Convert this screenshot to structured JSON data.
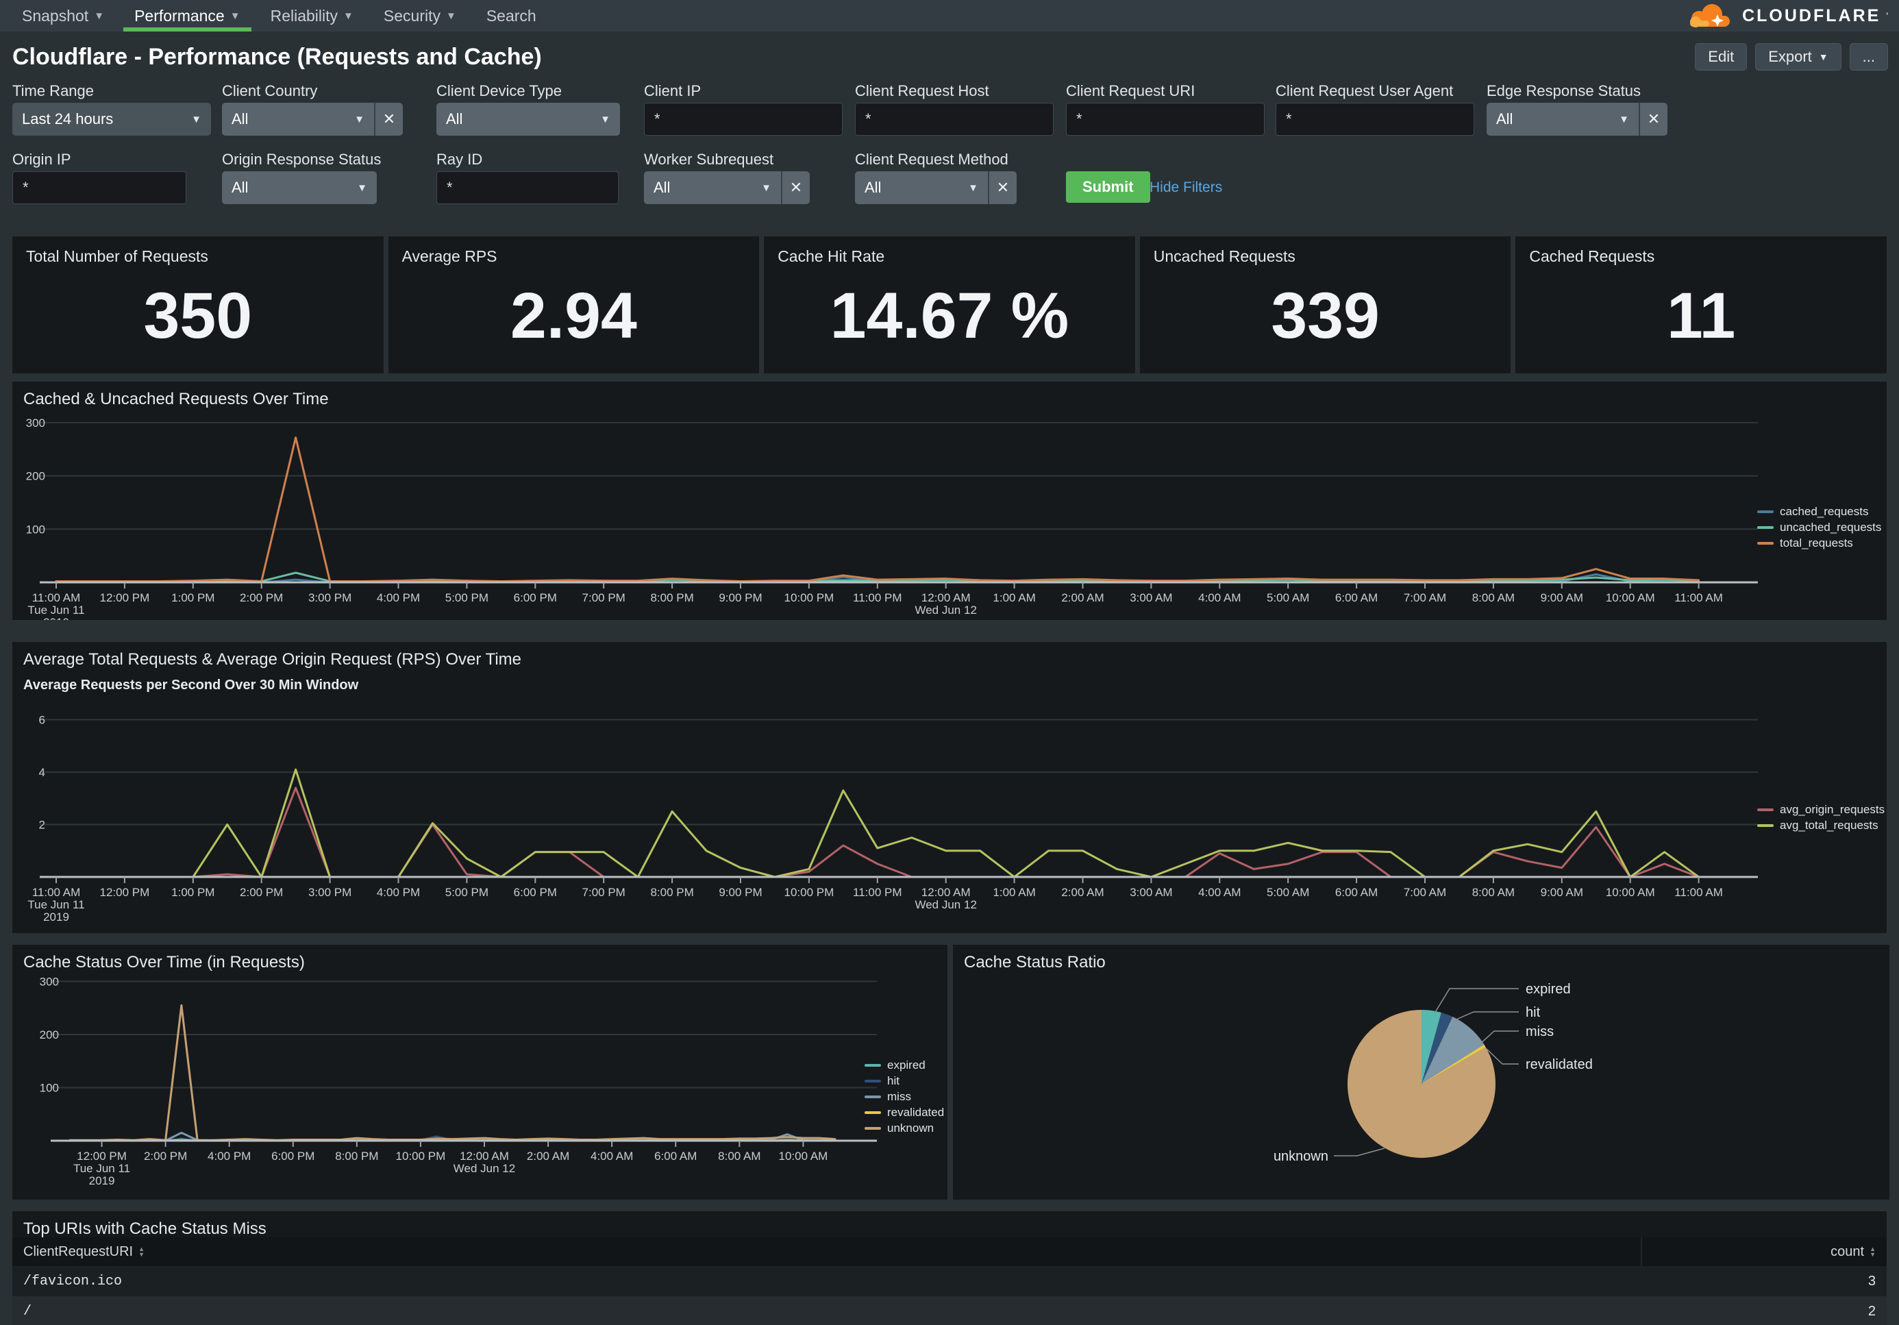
{
  "nav": {
    "items": [
      {
        "label": "Snapshot",
        "caret": true,
        "active": false
      },
      {
        "label": "Performance",
        "caret": true,
        "active": true
      },
      {
        "label": "Reliability",
        "caret": true,
        "active": false
      },
      {
        "label": "Security",
        "caret": true,
        "active": false
      },
      {
        "label": "Search",
        "caret": false,
        "active": false
      }
    ]
  },
  "brand": {
    "name": "CLOUDFLARE",
    "mark": "'",
    "logo_color": "#f6821f",
    "logo_color_light": "#fbad41"
  },
  "header": {
    "title": "Cloudflare - Performance (Requests and Cache)",
    "buttons": {
      "edit": "Edit",
      "export": "Export",
      "more": "..."
    }
  },
  "filters": {
    "row1": [
      {
        "label": "Time Range",
        "type": "select",
        "value": "Last 24 hours",
        "clear": false
      },
      {
        "label": "Client Country",
        "type": "select",
        "value": "All",
        "clear": true
      },
      {
        "label": "Client Device Type",
        "type": "select",
        "value": "All",
        "clear": false
      },
      {
        "label": "Client IP",
        "type": "input",
        "value": "*"
      },
      {
        "label": "Client Request Host",
        "type": "input",
        "value": "*"
      },
      {
        "label": "Client Request URI",
        "type": "input",
        "value": "*"
      },
      {
        "label": "Client Request User Agent",
        "type": "input",
        "value": "*"
      },
      {
        "label": "Edge Response Status",
        "type": "select",
        "value": "All",
        "clear": true
      }
    ],
    "row2": [
      {
        "label": "Origin IP",
        "type": "input",
        "value": "*"
      },
      {
        "label": "Origin Response Status",
        "type": "select",
        "value": "All",
        "clear": false
      },
      {
        "label": "Ray ID",
        "type": "input",
        "value": "*"
      },
      {
        "label": "Worker Subrequest",
        "type": "select",
        "value": "All",
        "clear": true
      },
      {
        "label": "Client Request Method",
        "type": "select",
        "value": "All",
        "clear": true
      }
    ],
    "submit_label": "Submit",
    "hide_filters_label": "Hide Filters"
  },
  "kpis": [
    {
      "label": "Total Number of Requests",
      "value": "350"
    },
    {
      "label": "Average RPS",
      "value": "2.94"
    },
    {
      "label": "Cache Hit Rate",
      "value": "14.67 %"
    },
    {
      "label": "Uncached Requests",
      "value": "339"
    },
    {
      "label": "Cached Requests",
      "value": "11"
    }
  ],
  "time_axis": {
    "hourly": [
      {
        "label": "11:00 AM",
        "sub": [
          "Tue Jun 11",
          "2019"
        ]
      },
      {
        "label": "12:00 PM"
      },
      {
        "label": "1:00 PM"
      },
      {
        "label": "2:00 PM"
      },
      {
        "label": "3:00 PM"
      },
      {
        "label": "4:00 PM"
      },
      {
        "label": "5:00 PM"
      },
      {
        "label": "6:00 PM"
      },
      {
        "label": "7:00 PM"
      },
      {
        "label": "8:00 PM"
      },
      {
        "label": "9:00 PM"
      },
      {
        "label": "10:00 PM"
      },
      {
        "label": "11:00 PM"
      },
      {
        "label": "12:00 AM",
        "sub": [
          "Wed Jun 12"
        ]
      },
      {
        "label": "1:00 AM"
      },
      {
        "label": "2:00 AM"
      },
      {
        "label": "3:00 AM"
      },
      {
        "label": "4:00 AM"
      },
      {
        "label": "5:00 AM"
      },
      {
        "label": "6:00 AM"
      },
      {
        "label": "7:00 AM"
      },
      {
        "label": "8:00 AM"
      },
      {
        "label": "9:00 AM"
      },
      {
        "label": "10:00 AM"
      },
      {
        "label": "11:00 AM"
      }
    ],
    "two_hourly": [
      {
        "label": "12:00 PM",
        "sub": [
          "Tue Jun 11",
          "2019"
        ]
      },
      {
        "label": "2:00 PM"
      },
      {
        "label": "4:00 PM"
      },
      {
        "label": "6:00 PM"
      },
      {
        "label": "8:00 PM"
      },
      {
        "label": "10:00 PM"
      },
      {
        "label": "12:00 AM",
        "sub": [
          "Wed Jun 12"
        ]
      },
      {
        "label": "2:00 AM"
      },
      {
        "label": "4:00 AM"
      },
      {
        "label": "6:00 AM"
      },
      {
        "label": "8:00 AM"
      },
      {
        "label": "10:00 AM"
      }
    ]
  },
  "chart_data": [
    {
      "type": "line",
      "title": "Cached & Uncached Requests Over Time",
      "x_start": "11:00 AM Tue Jun 11 2019",
      "x_interval_minutes": 30,
      "xlim": [
        "11:00 AM Jun 11",
        "11:30 AM Jun 12"
      ],
      "ylim": [
        0,
        300
      ],
      "y_ticks": [
        100,
        200,
        300
      ],
      "grid": true,
      "legend_position": "right",
      "series": [
        {
          "name": "cached_requests",
          "color": "#4a7b9d",
          "values": [
            0,
            0,
            0,
            0,
            0,
            1,
            0,
            5,
            0,
            0,
            0,
            1,
            0,
            0,
            0,
            1,
            0,
            0,
            1,
            1,
            0,
            0,
            1,
            10,
            2,
            2,
            2,
            1,
            0,
            1,
            1,
            1,
            0,
            0,
            1,
            1,
            1,
            1,
            1,
            1,
            0,
            0,
            1,
            1,
            2,
            15,
            2,
            2,
            1
          ]
        },
        {
          "name": "uncached_requests",
          "color": "#66bca2",
          "values": [
            2,
            2,
            2,
            2,
            2,
            4,
            2,
            18,
            2,
            2,
            2,
            4,
            2,
            2,
            2,
            3,
            2,
            2,
            5,
            3,
            2,
            2,
            2,
            4,
            3,
            4,
            5,
            3,
            2,
            3,
            4,
            3,
            2,
            2,
            3,
            4,
            5,
            3,
            3,
            3,
            3,
            3,
            4,
            4,
            5,
            9,
            4,
            5,
            3
          ]
        },
        {
          "name": "total_requests",
          "color": "#d0804e",
          "values": [
            2,
            2,
            2,
            2,
            3,
            5,
            2,
            272,
            2,
            2,
            3,
            5,
            3,
            2,
            3,
            4,
            3,
            3,
            7,
            4,
            2,
            3,
            3,
            13,
            5,
            6,
            7,
            4,
            3,
            5,
            6,
            4,
            3,
            3,
            5,
            6,
            7,
            5,
            5,
            5,
            4,
            4,
            6,
            6,
            8,
            25,
            7,
            7,
            4
          ]
        }
      ]
    },
    {
      "type": "line",
      "title": "Average Total Requests & Average Origin Request (RPS) Over Time",
      "subtitle": "Average Requests per Second Over 30 Min Window",
      "x_start": "11:00 AM Tue Jun 11 2019",
      "x_interval_minutes": 30,
      "ylim": [
        0,
        6
      ],
      "y_ticks": [
        2,
        4,
        6
      ],
      "grid": true,
      "legend_position": "right",
      "series": [
        {
          "name": "avg_origin_requests",
          "color": "#b36168",
          "values": [
            0,
            0,
            0,
            0,
            0,
            0.1,
            0,
            3.4,
            0,
            0,
            0,
            2,
            0.1,
            0,
            0.95,
            0.95,
            0,
            0,
            0,
            0,
            0,
            0,
            0.2,
            1.2,
            0.5,
            0,
            0,
            0,
            0,
            0,
            0,
            0,
            0,
            0,
            0.9,
            0.3,
            0.5,
            0.95,
            0.95,
            0,
            0,
            0,
            0.95,
            0.6,
            0.35,
            1.9,
            0,
            0.5,
            0
          ]
        },
        {
          "name": "avg_total_requests",
          "color": "#b5c25e",
          "values": [
            0,
            0,
            0,
            0,
            0,
            2,
            0,
            4.1,
            0,
            0,
            0,
            2.05,
            0.7,
            0,
            0.95,
            0.95,
            0.95,
            0,
            2.5,
            1,
            0.35,
            0,
            0.3,
            3.3,
            1.1,
            1.5,
            1,
            1,
            0,
            1,
            1,
            0.3,
            0,
            0.5,
            1,
            1,
            1.3,
            1,
            1,
            0.95,
            0,
            0,
            1,
            1.25,
            0.95,
            2.5,
            0,
            0.95,
            0
          ]
        }
      ]
    },
    {
      "type": "line",
      "title": "Cache Status Over Time (in Requests)",
      "x_start": "11:00 AM Tue Jun 11 2019",
      "x_interval_minutes": 30,
      "ylim": [
        0,
        300
      ],
      "y_ticks": [
        100,
        200,
        300
      ],
      "grid": true,
      "legend_position": "right",
      "series": [
        {
          "name": "expired",
          "color": "#56b8ae",
          "values": [
            0,
            0,
            0,
            0,
            0,
            0,
            0,
            3,
            0,
            0,
            0,
            0,
            0,
            0,
            0,
            0,
            0,
            0,
            1,
            0,
            0,
            0,
            0,
            1,
            0,
            0,
            1,
            0,
            0,
            0,
            2,
            1,
            0,
            0,
            1,
            1,
            1,
            0,
            0,
            0,
            0,
            0,
            1,
            1,
            1,
            2,
            1,
            0,
            0
          ]
        },
        {
          "name": "hit",
          "color": "#2f5178",
          "values": [
            0,
            0,
            0,
            0,
            0,
            0,
            0,
            2,
            0,
            0,
            0,
            0,
            0,
            0,
            0,
            0,
            0,
            0,
            0,
            0,
            0,
            0,
            1,
            8,
            1,
            1,
            1,
            0,
            0,
            0,
            1,
            0,
            0,
            0,
            0,
            1,
            1,
            0,
            0,
            0,
            0,
            0,
            1,
            1,
            1,
            3,
            1,
            0,
            0
          ]
        },
        {
          "name": "miss",
          "color": "#7e97a9",
          "values": [
            0,
            0,
            0,
            0,
            0,
            1,
            0,
            15,
            1,
            0,
            0,
            1,
            0,
            0,
            1,
            0,
            0,
            0,
            1,
            1,
            0,
            0,
            1,
            2,
            1,
            1,
            1,
            1,
            0,
            1,
            1,
            1,
            0,
            0,
            1,
            1,
            1,
            1,
            1,
            1,
            0,
            0,
            1,
            1,
            2,
            12,
            1,
            1,
            0
          ]
        },
        {
          "name": "revalidated",
          "color": "#e9cb3d",
          "values": [
            0,
            0,
            0,
            0,
            0,
            0,
            0,
            1,
            0,
            0,
            0,
            0,
            0,
            0,
            0,
            0,
            0,
            0,
            0,
            0,
            0,
            0,
            0,
            1,
            0,
            0,
            0,
            0,
            0,
            0,
            0,
            0,
            0,
            0,
            0,
            0,
            0,
            0,
            0,
            0,
            0,
            0,
            0,
            0,
            0,
            1,
            0,
            0,
            0
          ]
        },
        {
          "name": "unknown",
          "color": "#c6a173",
          "values": [
            1,
            1,
            1,
            2,
            1,
            3,
            1,
            255,
            1,
            1,
            2,
            3,
            2,
            1,
            2,
            2,
            2,
            2,
            5,
            3,
            2,
            2,
            2,
            4,
            3,
            4,
            5,
            3,
            2,
            3,
            4,
            3,
            2,
            2,
            3,
            4,
            5,
            3,
            3,
            3,
            3,
            3,
            4,
            4,
            5,
            7,
            5,
            5,
            3
          ]
        }
      ]
    },
    {
      "type": "pie",
      "title": "Cache Status Ratio",
      "slices": [
        {
          "label": "expired",
          "pct": 4.3,
          "color": "#56b8ae"
        },
        {
          "label": "hit",
          "pct": 2.6,
          "color": "#2f5178"
        },
        {
          "label": "miss",
          "pct": 9.2,
          "color": "#7e97a9"
        },
        {
          "label": "revalidated",
          "pct": 0.6,
          "color": "#e9cb3d"
        },
        {
          "label": "unknown",
          "pct": 83.3,
          "color": "#c6a173"
        }
      ]
    },
    {
      "type": "table",
      "title": "Top URIs with Cache Status Miss",
      "columns": [
        "ClientRequestURI",
        "count"
      ],
      "rows": [
        [
          "/favicon.ico",
          "3"
        ],
        [
          "/",
          "2"
        ]
      ]
    }
  ]
}
